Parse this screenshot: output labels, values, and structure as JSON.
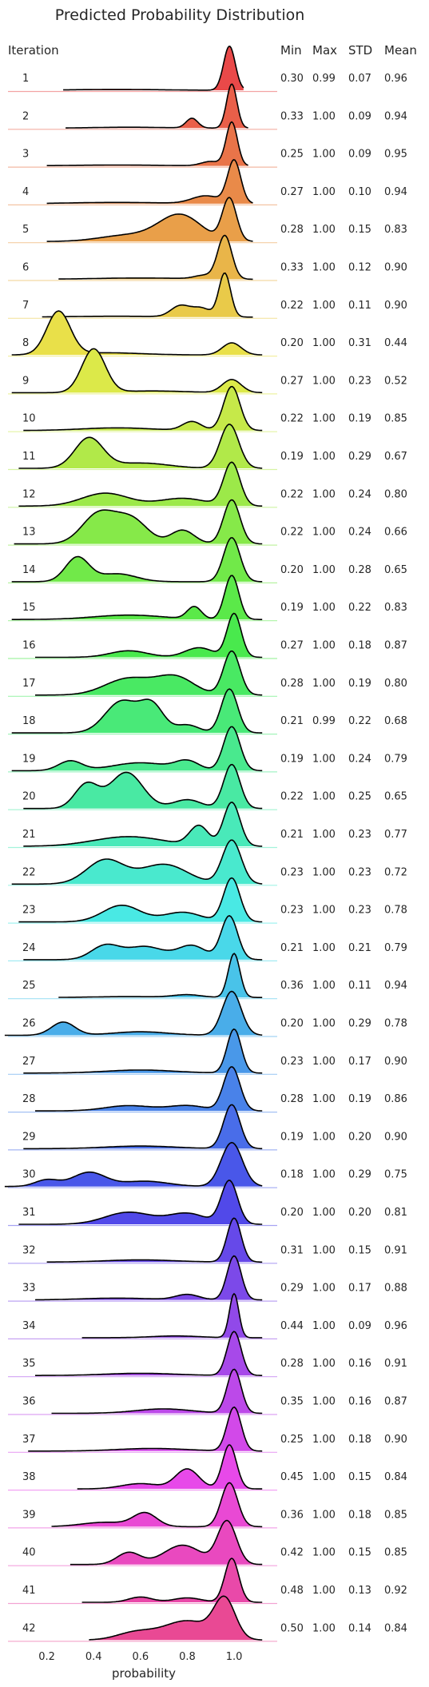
{
  "chart_data": {
    "type": "ridgeline",
    "title": "Predicted Probability Distribution",
    "xlabel": "probability",
    "xlim": [
      0.0,
      1.15
    ],
    "xticks": [
      0.2,
      0.4,
      0.6,
      0.8,
      1.0
    ],
    "xtick_labels": [
      "0.2",
      "0.4",
      "0.6",
      "0.8",
      "1.0"
    ],
    "row_header": "Iteration",
    "stat_headers": [
      "Min",
      "Max",
      "STD",
      "Mean"
    ],
    "grid": false,
    "colormap": "husl",
    "series": [
      {
        "label": "1",
        "range": [
          0.27,
          1.04
        ],
        "peaks": [
          [
            0.98,
            0.025,
            1.0
          ],
          [
            0.5,
            0.2,
            0.02
          ]
        ],
        "stats": [
          "0.30",
          "0.99",
          "0.07",
          "0.96"
        ]
      },
      {
        "label": "2",
        "range": [
          0.28,
          1.06
        ],
        "peaks": [
          [
            0.99,
            0.022,
            1.0
          ],
          [
            0.82,
            0.025,
            0.22
          ],
          [
            0.55,
            0.15,
            0.02
          ]
        ],
        "stats": [
          "0.33",
          "1.00",
          "0.09",
          "0.94"
        ]
      },
      {
        "label": "3",
        "range": [
          0.2,
          1.06
        ],
        "peaks": [
          [
            0.99,
            0.024,
            1.0
          ],
          [
            0.9,
            0.04,
            0.1
          ],
          [
            0.5,
            0.2,
            0.02
          ]
        ],
        "stats": [
          "0.25",
          "1.00",
          "0.09",
          "0.95"
        ]
      },
      {
        "label": "4",
        "range": [
          0.2,
          1.08
        ],
        "peaks": [
          [
            1.0,
            0.028,
            1.0
          ],
          [
            0.88,
            0.06,
            0.18
          ],
          [
            0.5,
            0.2,
            0.03
          ]
        ],
        "stats": [
          "0.27",
          "1.00",
          "0.10",
          "0.94"
        ]
      },
      {
        "label": "5",
        "range": [
          0.2,
          1.08
        ],
        "peaks": [
          [
            0.98,
            0.03,
            1.0
          ],
          [
            0.77,
            0.09,
            0.62
          ],
          [
            0.55,
            0.12,
            0.15
          ]
        ],
        "stats": [
          "0.28",
          "1.00",
          "0.15",
          "0.83"
        ]
      },
      {
        "label": "6",
        "range": [
          0.25,
          1.08
        ],
        "peaks": [
          [
            0.96,
            0.03,
            1.0
          ],
          [
            0.87,
            0.04,
            0.08
          ],
          [
            0.6,
            0.2,
            0.03
          ]
        ],
        "stats": [
          "0.33",
          "1.00",
          "0.12",
          "0.90"
        ]
      },
      {
        "label": "7",
        "range": [
          0.18,
          1.08
        ],
        "peaks": [
          [
            0.96,
            0.025,
            1.0
          ],
          [
            0.77,
            0.04,
            0.25
          ],
          [
            0.86,
            0.04,
            0.2
          ],
          [
            0.5,
            0.2,
            0.02
          ]
        ],
        "stats": [
          "0.22",
          "1.00",
          "0.11",
          "0.90"
        ]
      },
      {
        "label": "8",
        "range": [
          0.05,
          1.12
        ],
        "peaks": [
          [
            0.25,
            0.05,
            1.0
          ],
          [
            0.99,
            0.04,
            0.28
          ],
          [
            0.45,
            0.15,
            0.05
          ]
        ],
        "stats": [
          "0.20",
          "1.00",
          "0.31",
          "0.44"
        ]
      },
      {
        "label": "9",
        "range": [
          0.05,
          1.12
        ],
        "peaks": [
          [
            0.4,
            0.05,
            1.0
          ],
          [
            0.99,
            0.04,
            0.3
          ],
          [
            0.65,
            0.15,
            0.04
          ]
        ],
        "stats": [
          "0.27",
          "1.00",
          "0.23",
          "0.52"
        ]
      },
      {
        "label": "10",
        "range": [
          0.1,
          1.12
        ],
        "peaks": [
          [
            0.99,
            0.035,
            1.0
          ],
          [
            0.82,
            0.04,
            0.2
          ],
          [
            0.5,
            0.15,
            0.06
          ]
        ],
        "stats": [
          "0.22",
          "1.00",
          "0.19",
          "0.85"
        ]
      },
      {
        "label": "11",
        "range": [
          0.08,
          1.12
        ],
        "peaks": [
          [
            0.98,
            0.04,
            1.0
          ],
          [
            0.38,
            0.06,
            0.68
          ],
          [
            0.6,
            0.12,
            0.12
          ]
        ],
        "stats": [
          "0.19",
          "1.00",
          "0.29",
          "0.67"
        ]
      },
      {
        "label": "12",
        "range": [
          0.08,
          1.12
        ],
        "peaks": [
          [
            0.99,
            0.035,
            1.0
          ],
          [
            0.45,
            0.1,
            0.3
          ],
          [
            0.78,
            0.1,
            0.18
          ]
        ],
        "stats": [
          "0.22",
          "1.00",
          "0.24",
          "0.80"
        ]
      },
      {
        "label": "13",
        "range": [
          0.06,
          1.12
        ],
        "peaks": [
          [
            0.99,
            0.035,
            0.9
          ],
          [
            0.42,
            0.07,
            0.6
          ],
          [
            0.56,
            0.07,
            0.5
          ],
          [
            0.78,
            0.05,
            0.28
          ]
        ],
        "stats": [
          "0.22",
          "1.00",
          "0.24",
          "0.66"
        ]
      },
      {
        "label": "14",
        "range": [
          0.05,
          1.12
        ],
        "peaks": [
          [
            0.99,
            0.035,
            1.0
          ],
          [
            0.33,
            0.05,
            0.55
          ],
          [
            0.5,
            0.08,
            0.18
          ]
        ],
        "stats": [
          "0.20",
          "1.00",
          "0.28",
          "0.65"
        ]
      },
      {
        "label": "15",
        "range": [
          0.05,
          1.12
        ],
        "peaks": [
          [
            0.99,
            0.03,
            1.0
          ],
          [
            0.83,
            0.03,
            0.28
          ],
          [
            0.55,
            0.15,
            0.1
          ]
        ],
        "stats": [
          "0.19",
          "1.00",
          "0.22",
          "0.83"
        ]
      },
      {
        "label": "16",
        "range": [
          0.15,
          1.12
        ],
        "peaks": [
          [
            1.0,
            0.03,
            1.0
          ],
          [
            0.55,
            0.08,
            0.15
          ],
          [
            0.85,
            0.06,
            0.22
          ]
        ],
        "stats": [
          "0.27",
          "1.00",
          "0.18",
          "0.87"
        ]
      },
      {
        "label": "17",
        "range": [
          0.15,
          1.12
        ],
        "peaks": [
          [
            0.99,
            0.035,
            1.0
          ],
          [
            0.55,
            0.1,
            0.38
          ],
          [
            0.75,
            0.08,
            0.4
          ]
        ],
        "stats": [
          "0.28",
          "1.00",
          "0.19",
          "0.80"
        ]
      },
      {
        "label": "18",
        "range": [
          0.05,
          1.12
        ],
        "peaks": [
          [
            0.98,
            0.035,
            1.0
          ],
          [
            0.52,
            0.07,
            0.72
          ],
          [
            0.65,
            0.05,
            0.6
          ],
          [
            0.8,
            0.05,
            0.18
          ]
        ],
        "stats": [
          "0.21",
          "0.99",
          "0.22",
          "0.68"
        ]
      },
      {
        "label": "19",
        "range": [
          0.05,
          1.12
        ],
        "peaks": [
          [
            0.99,
            0.035,
            1.0
          ],
          [
            0.3,
            0.05,
            0.22
          ],
          [
            0.6,
            0.12,
            0.18
          ],
          [
            0.8,
            0.05,
            0.2
          ]
        ],
        "stats": [
          "0.19",
          "1.00",
          "0.24",
          "0.79"
        ]
      },
      {
        "label": "20",
        "range": [
          0.1,
          1.12
        ],
        "peaks": [
          [
            0.99,
            0.035,
            1.0
          ],
          [
            0.37,
            0.05,
            0.55
          ],
          [
            0.54,
            0.07,
            0.82
          ],
          [
            0.8,
            0.06,
            0.2
          ]
        ],
        "stats": [
          "0.22",
          "1.00",
          "0.25",
          "0.65"
        ]
      },
      {
        "label": "21",
        "range": [
          0.1,
          1.12
        ],
        "peaks": [
          [
            0.99,
            0.035,
            1.0
          ],
          [
            0.85,
            0.04,
            0.45
          ],
          [
            0.55,
            0.15,
            0.22
          ]
        ],
        "stats": [
          "0.21",
          "1.00",
          "0.23",
          "0.77"
        ]
      },
      {
        "label": "22",
        "range": [
          0.05,
          1.12
        ],
        "peaks": [
          [
            0.99,
            0.04,
            1.0
          ],
          [
            0.45,
            0.08,
            0.55
          ],
          [
            0.7,
            0.1,
            0.45
          ]
        ],
        "stats": [
          "0.23",
          "1.00",
          "0.23",
          "0.72"
        ]
      },
      {
        "label": "23",
        "range": [
          0.08,
          1.12
        ],
        "peaks": [
          [
            0.99,
            0.035,
            1.0
          ],
          [
            0.52,
            0.08,
            0.38
          ],
          [
            0.78,
            0.08,
            0.22
          ]
        ],
        "stats": [
          "0.23",
          "1.00",
          "0.23",
          "0.78"
        ]
      },
      {
        "label": "24",
        "range": [
          0.1,
          1.12
        ],
        "peaks": [
          [
            0.98,
            0.035,
            1.0
          ],
          [
            0.45,
            0.06,
            0.32
          ],
          [
            0.62,
            0.08,
            0.3
          ],
          [
            0.82,
            0.06,
            0.32
          ]
        ],
        "stats": [
          "0.21",
          "1.00",
          "0.21",
          "0.79"
        ]
      },
      {
        "label": "25",
        "range": [
          0.25,
          1.12
        ],
        "peaks": [
          [
            1.0,
            0.025,
            1.0
          ],
          [
            0.8,
            0.06,
            0.06
          ],
          [
            0.55,
            0.15,
            0.02
          ]
        ],
        "stats": [
          "0.36",
          "1.00",
          "0.11",
          "0.94"
        ]
      },
      {
        "label": "26",
        "range": [
          0.02,
          1.12
        ],
        "peaks": [
          [
            0.99,
            0.04,
            1.0
          ],
          [
            0.27,
            0.05,
            0.3
          ],
          [
            0.6,
            0.12,
            0.08
          ]
        ],
        "stats": [
          "0.20",
          "1.00",
          "0.29",
          "0.78"
        ]
      },
      {
        "label": "27",
        "range": [
          0.1,
          1.12
        ],
        "peaks": [
          [
            1.0,
            0.03,
            1.0
          ],
          [
            0.6,
            0.15,
            0.07
          ]
        ],
        "stats": [
          "0.23",
          "1.00",
          "0.17",
          "0.90"
        ]
      },
      {
        "label": "28",
        "range": [
          0.15,
          1.12
        ],
        "peaks": [
          [
            0.99,
            0.035,
            1.0
          ],
          [
            0.55,
            0.1,
            0.12
          ],
          [
            0.8,
            0.08,
            0.12
          ]
        ],
        "stats": [
          "0.28",
          "1.00",
          "0.19",
          "0.86"
        ]
      },
      {
        "label": "29",
        "range": [
          0.1,
          1.12
        ],
        "peaks": [
          [
            0.99,
            0.035,
            1.0
          ],
          [
            0.6,
            0.15,
            0.06
          ]
        ],
        "stats": [
          "0.19",
          "1.00",
          "0.20",
          "0.90"
        ]
      },
      {
        "label": "30",
        "range": [
          0.02,
          1.12
        ],
        "peaks": [
          [
            0.99,
            0.045,
            1.0
          ],
          [
            0.38,
            0.07,
            0.32
          ],
          [
            0.2,
            0.05,
            0.15
          ],
          [
            0.62,
            0.1,
            0.12
          ]
        ],
        "stats": [
          "0.18",
          "1.00",
          "0.29",
          "0.75"
        ]
      },
      {
        "label": "31",
        "range": [
          0.08,
          1.12
        ],
        "peaks": [
          [
            0.98,
            0.035,
            1.0
          ],
          [
            0.55,
            0.1,
            0.28
          ],
          [
            0.8,
            0.08,
            0.25
          ]
        ],
        "stats": [
          "0.20",
          "1.00",
          "0.20",
          "0.81"
        ]
      },
      {
        "label": "32",
        "range": [
          0.2,
          1.12
        ],
        "peaks": [
          [
            1.0,
            0.03,
            1.0
          ],
          [
            0.6,
            0.15,
            0.05
          ]
        ],
        "stats": [
          "0.31",
          "1.00",
          "0.15",
          "0.91"
        ]
      },
      {
        "label": "33",
        "range": [
          0.15,
          1.12
        ],
        "peaks": [
          [
            1.0,
            0.03,
            1.0
          ],
          [
            0.8,
            0.05,
            0.12
          ],
          [
            0.5,
            0.15,
            0.04
          ]
        ],
        "stats": [
          "0.29",
          "1.00",
          "0.17",
          "0.88"
        ]
      },
      {
        "label": "34",
        "range": [
          0.35,
          1.12
        ],
        "peaks": [
          [
            1.0,
            0.02,
            1.0
          ],
          [
            0.75,
            0.1,
            0.04
          ]
        ],
        "stats": [
          "0.44",
          "1.00",
          "0.09",
          "0.96"
        ]
      },
      {
        "label": "35",
        "range": [
          0.15,
          1.12
        ],
        "peaks": [
          [
            1.0,
            0.03,
            1.0
          ],
          [
            0.6,
            0.15,
            0.05
          ]
        ],
        "stats": [
          "0.28",
          "1.00",
          "0.16",
          "0.91"
        ]
      },
      {
        "label": "36",
        "range": [
          0.22,
          1.12
        ],
        "peaks": [
          [
            1.0,
            0.03,
            1.0
          ],
          [
            0.7,
            0.12,
            0.1
          ]
        ],
        "stats": [
          "0.35",
          "1.00",
          "0.16",
          "0.87"
        ]
      },
      {
        "label": "37",
        "range": [
          0.12,
          1.12
        ],
        "peaks": [
          [
            1.0,
            0.03,
            1.0
          ],
          [
            0.65,
            0.15,
            0.06
          ]
        ],
        "stats": [
          "0.25",
          "1.00",
          "0.18",
          "0.90"
        ]
      },
      {
        "label": "38",
        "range": [
          0.33,
          1.12
        ],
        "peaks": [
          [
            0.98,
            0.03,
            1.0
          ],
          [
            0.8,
            0.05,
            0.45
          ],
          [
            0.6,
            0.08,
            0.12
          ]
        ],
        "stats": [
          "0.45",
          "1.00",
          "0.15",
          "0.84"
        ]
      },
      {
        "label": "39",
        "range": [
          0.22,
          1.12
        ],
        "peaks": [
          [
            0.98,
            0.035,
            1.0
          ],
          [
            0.62,
            0.05,
            0.3
          ],
          [
            0.45,
            0.1,
            0.1
          ]
        ],
        "stats": [
          "0.36",
          "1.00",
          "0.18",
          "0.85"
        ]
      },
      {
        "label": "40",
        "range": [
          0.3,
          1.12
        ],
        "peaks": [
          [
            0.97,
            0.04,
            1.0
          ],
          [
            0.55,
            0.05,
            0.28
          ],
          [
            0.78,
            0.08,
            0.45
          ]
        ],
        "stats": [
          "0.42",
          "1.00",
          "0.15",
          "0.85"
        ]
      },
      {
        "label": "41",
        "range": [
          0.35,
          1.12
        ],
        "peaks": [
          [
            0.99,
            0.03,
            1.0
          ],
          [
            0.6,
            0.05,
            0.12
          ],
          [
            0.8,
            0.06,
            0.1
          ]
        ],
        "stats": [
          "0.48",
          "1.00",
          "0.13",
          "0.92"
        ]
      },
      {
        "label": "42",
        "range": [
          0.38,
          1.12
        ],
        "peaks": [
          [
            0.96,
            0.045,
            1.0
          ],
          [
            0.8,
            0.1,
            0.5
          ],
          [
            0.58,
            0.08,
            0.2
          ]
        ],
        "stats": [
          "0.50",
          "1.00",
          "0.14",
          "0.84"
        ]
      }
    ]
  }
}
